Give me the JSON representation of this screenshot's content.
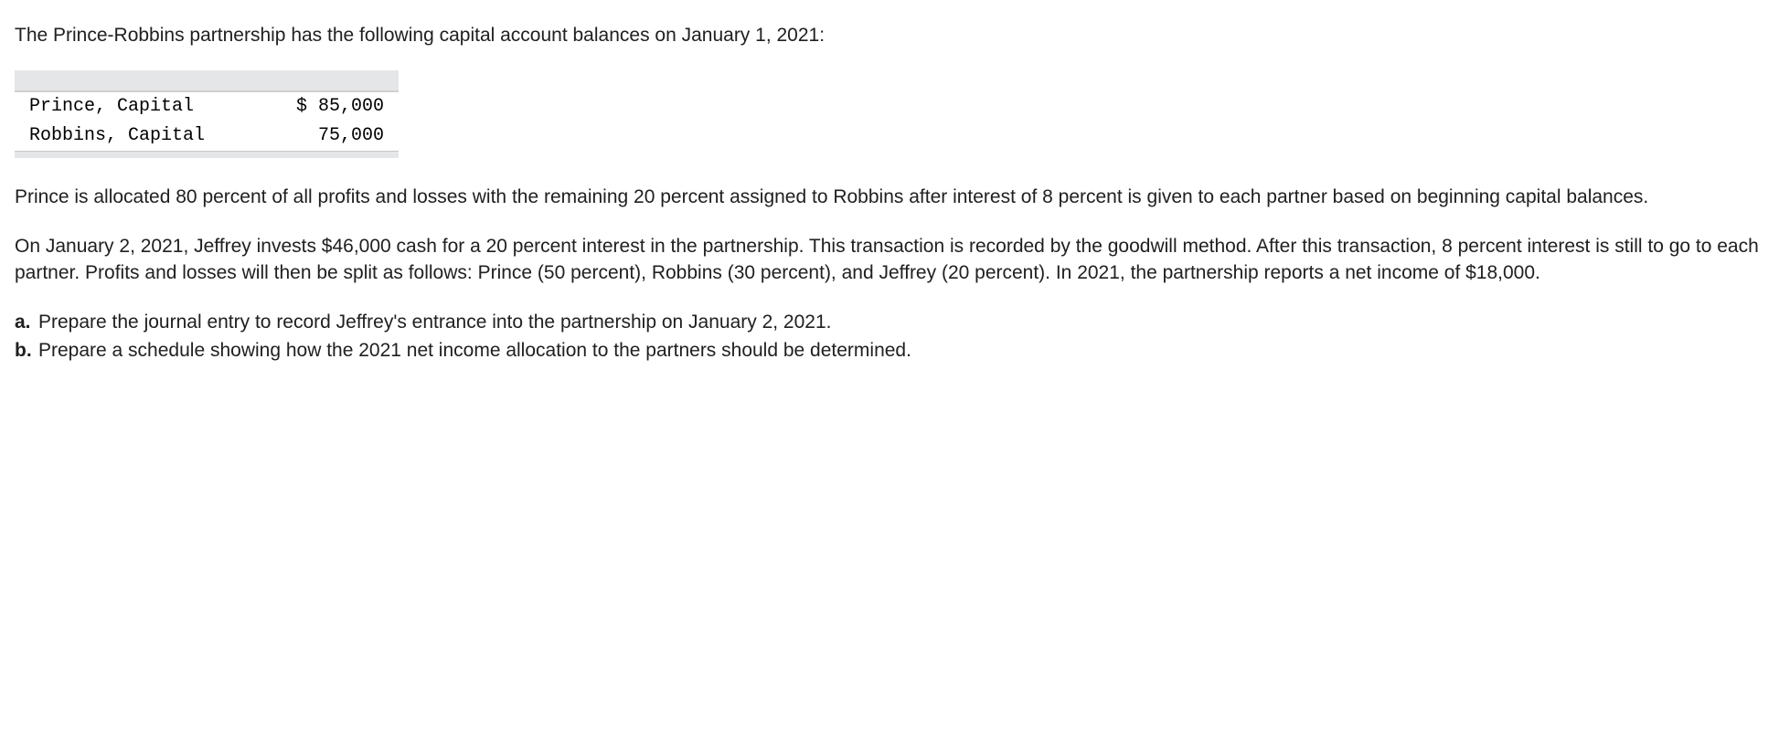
{
  "intro": "The Prince-Robbins partnership has the following capital account balances on January 1, 2021:",
  "capital_table": {
    "rows": [
      {
        "label": "Prince, Capital",
        "amount": "$ 85,000"
      },
      {
        "label": "Robbins, Capital",
        "amount": "  75,000"
      }
    ],
    "header_bg": "#e5e6e8",
    "font_family": "Courier New"
  },
  "para2": "Prince is allocated 80 percent of all profits and losses with the remaining 20 percent assigned to Robbins after interest of 8 percent is given to each partner based on beginning capital balances.",
  "para3": "On January 2, 2021, Jeffrey invests $46,000 cash for a 20 percent interest in the partnership. This transaction is recorded by the goodwill method. After this transaction, 8 percent interest is still to go to each partner. Profits and losses will then be split as follows: Prince (50 percent), Robbins (30 percent), and Jeffrey (20 percent). In 2021, the partnership reports a net income of $18,000.",
  "questions": {
    "a": {
      "marker": "a.",
      "text": "Prepare the journal entry to record Jeffrey's entrance into the partnership on January 2, 2021."
    },
    "b": {
      "marker": "b.",
      "text": "Prepare a schedule showing how the 2021 net income allocation to the partners should be determined."
    }
  }
}
